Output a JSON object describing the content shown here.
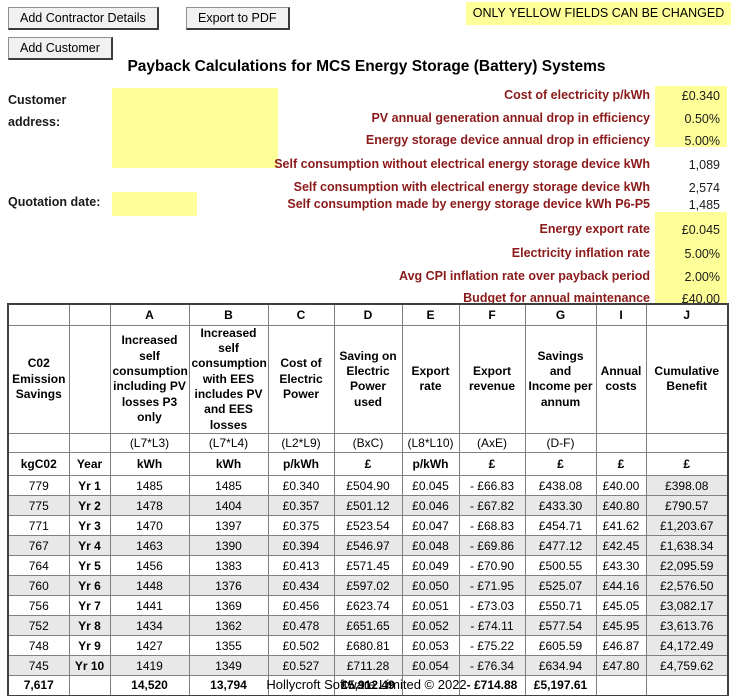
{
  "colors": {
    "editable_yellow": "#FFFF99",
    "label_maroon": "#8B1A1A",
    "accent_red": "#FF0000",
    "row_shade": "#E8E8E8"
  },
  "toolbar": {
    "add_contractor_label": "Add Contractor Details",
    "export_pdf_label": "Export to PDF",
    "add_customer_label": "Add Customer",
    "yellow_notice": "ONLY YELLOW FIELDS CAN BE CHANGED"
  },
  "title": "Payback Calculations for MCS Energy Storage (Battery) Systems",
  "form": {
    "customer_address_label": "Customer address:",
    "customer_address_value": "",
    "quotation_date_label": "Quotation date:",
    "quotation_date_value": "",
    "fields": [
      {
        "label": "Cost of electricity p/kWh",
        "value": "£0.340",
        "editable": true
      },
      {
        "label": "PV annual generation annual drop in efficiency",
        "value": "0.50%",
        "editable": true
      },
      {
        "label": "Energy storage device annual drop in efficiency",
        "value": "5.00%",
        "editable": true
      },
      {
        "label": "Self consumption without electrical energy storage device kWh",
        "value": "1,089",
        "editable": false
      },
      {
        "label": "Self consumption with electrical energy storage device kWh",
        "value": "2,574",
        "editable": false
      },
      {
        "label": "Self consumption made by energy storage device kWh P6-P5",
        "value": "1,485",
        "editable": false
      },
      {
        "label": "Energy export rate",
        "value": "£0.045",
        "editable": true
      },
      {
        "label": "Electricity inflation rate",
        "value": "5.00%",
        "editable": true
      },
      {
        "label": "Avg CPI inflation rate over payback period",
        "value": "2.00%",
        "editable": true
      },
      {
        "label": "Budget for annual maintenance",
        "value": "£40.00",
        "editable": true
      }
    ]
  },
  "table": {
    "letters": [
      "",
      "",
      "A",
      "B",
      "C",
      "D",
      "E",
      "F",
      "G",
      "I",
      "J"
    ],
    "headers": [
      "C02 Emission Savings",
      "",
      "Increased self consumption including PV losses P3 only",
      "Increased self consumption with EES includes PV and EES losses",
      "Cost of Electric Power",
      "Saving on Electric Power used",
      "Export rate",
      "Export revenue",
      "Savings and Income per annum",
      "Annual costs",
      "Cumulative Benefit"
    ],
    "formulas": [
      "",
      "",
      "(L7*L3)",
      "(L7*L4)",
      "(L2*L9)",
      "(BxC)",
      "(L8*L10)",
      "(AxE)",
      "(D-F)",
      "",
      ""
    ],
    "units": [
      "kgC02",
      "Year",
      "kWh",
      "kWh",
      "p/kWh",
      "£",
      "p/kWh",
      "£",
      "£",
      "£",
      "£"
    ],
    "rows": [
      [
        "779",
        "Yr 1",
        "1485",
        "1485",
        "£0.340",
        "£504.90",
        "£0.045",
        "- £66.83",
        "£438.08",
        "£40.00",
        "£398.08"
      ],
      [
        "775",
        "Yr 2",
        "1478",
        "1404",
        "£0.357",
        "£501.12",
        "£0.046",
        "- £67.82",
        "£433.30",
        "£40.80",
        "£790.57"
      ],
      [
        "771",
        "Yr 3",
        "1470",
        "1397",
        "£0.375",
        "£523.54",
        "£0.047",
        "- £68.83",
        "£454.71",
        "£41.62",
        "£1,203.67"
      ],
      [
        "767",
        "Yr 4",
        "1463",
        "1390",
        "£0.394",
        "£546.97",
        "£0.048",
        "- £69.86",
        "£477.12",
        "£42.45",
        "£1,638.34"
      ],
      [
        "764",
        "Yr 5",
        "1456",
        "1383",
        "£0.413",
        "£571.45",
        "£0.049",
        "- £70.90",
        "£500.55",
        "£43.30",
        "£2,095.59"
      ],
      [
        "760",
        "Yr 6",
        "1448",
        "1376",
        "£0.434",
        "£597.02",
        "£0.050",
        "- £71.95",
        "£525.07",
        "£44.16",
        "£2,576.50"
      ],
      [
        "756",
        "Yr 7",
        "1441",
        "1369",
        "£0.456",
        "£623.74",
        "£0.051",
        "- £73.03",
        "£550.71",
        "£45.05",
        "£3,082.17"
      ],
      [
        "752",
        "Yr 8",
        "1434",
        "1362",
        "£0.478",
        "£651.65",
        "£0.052",
        "- £74.11",
        "£577.54",
        "£45.95",
        "£3,613.76"
      ],
      [
        "748",
        "Yr 9",
        "1427",
        "1355",
        "£0.502",
        "£680.81",
        "£0.053",
        "- £75.22",
        "£605.59",
        "£46.87",
        "£4,172.49"
      ],
      [
        "745",
        "Yr 10",
        "1419",
        "1349",
        "£0.527",
        "£711.28",
        "£0.054",
        "- £76.34",
        "£634.94",
        "£47.80",
        "£4,759.62"
      ]
    ],
    "totals": [
      "7,617",
      "",
      "14,520",
      "13,794",
      "",
      "£5,912.49",
      "",
      "- £714.88",
      "£5,197.61",
      "",
      ""
    ]
  },
  "footer": {
    "text": "Hollycroft Software Limited © 2022"
  }
}
